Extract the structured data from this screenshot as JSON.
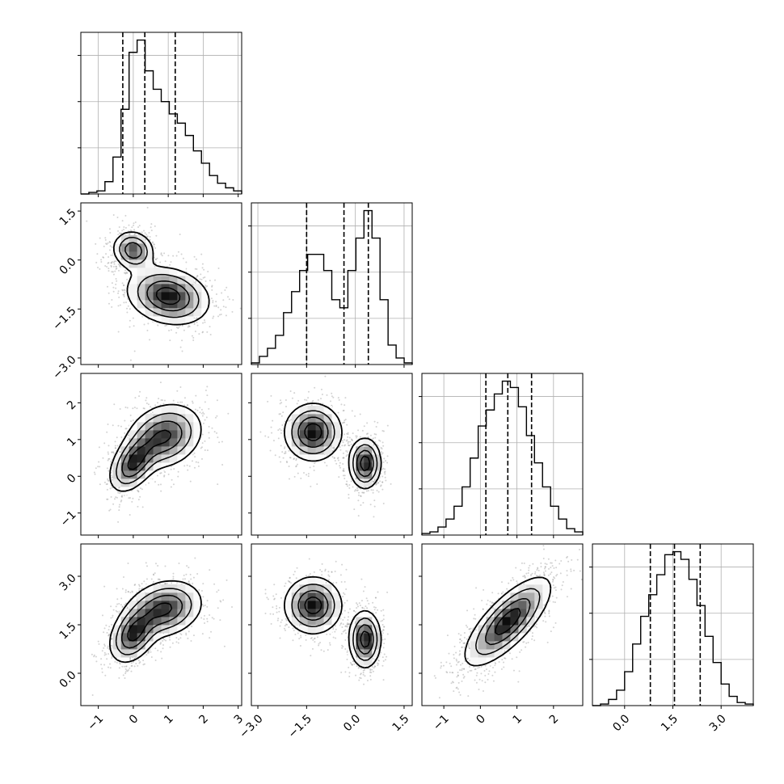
{
  "chart_data": {
    "type": "corner",
    "variables": [
      {
        "range": [
          -1.5,
          3.1
        ],
        "ticks": [
          -1,
          0,
          1,
          2,
          3
        ],
        "tick_labels": [
          "−1",
          "0",
          "1",
          "2",
          "3"
        ],
        "quantiles": [
          -0.3,
          0.33,
          1.2
        ],
        "histogram": {
          "edges_start": -1.5,
          "bin_width": 0.23,
          "counts": [
            0,
            1,
            2,
            8,
            24,
            55,
            92,
            100,
            80,
            68,
            60,
            52,
            46,
            38,
            28,
            20,
            12,
            7,
            4,
            2
          ]
        }
      },
      {
        "range": [
          -3.2,
          1.75
        ],
        "ticks": [
          -3.0,
          -1.5,
          0.0,
          1.5
        ],
        "tick_labels": [
          "−3.0",
          "−1.5",
          "0.0",
          "1.5"
        ],
        "quantiles": [
          -1.5,
          -0.35,
          0.4
        ],
        "histogram": {
          "edges_start": -3.2,
          "bin_width": 0.2475,
          "counts": [
            1,
            5,
            10,
            18,
            32,
            45,
            58,
            68,
            68,
            58,
            40,
            35,
            58,
            78,
            95,
            78,
            40,
            12,
            4,
            1
          ]
        }
      },
      {
        "range": [
          -1.6,
          2.8
        ],
        "ticks": [
          -1,
          0,
          1,
          2
        ],
        "tick_labels": [
          "−1",
          "0",
          "1",
          "2"
        ],
        "quantiles": [
          0.15,
          0.75,
          1.4
        ],
        "histogram": {
          "edges_start": -1.6,
          "bin_width": 0.22,
          "counts": [
            1,
            2,
            5,
            10,
            18,
            30,
            48,
            68,
            78,
            88,
            96,
            92,
            80,
            62,
            45,
            30,
            18,
            10,
            4,
            2
          ]
        }
      },
      {
        "range": [
          -1.0,
          4.0
        ],
        "ticks": [
          0.0,
          1.5,
          3.0
        ],
        "tick_labels": [
          "0.0",
          "1.5",
          "3.0"
        ],
        "quantiles": [
          0.8,
          1.55,
          2.35
        ],
        "histogram": {
          "edges_start": -1.0,
          "bin_width": 0.25,
          "counts": [
            0,
            1,
            4,
            10,
            22,
            40,
            58,
            72,
            85,
            98,
            100,
            95,
            82,
            65,
            45,
            28,
            14,
            6,
            2,
            1
          ]
        }
      }
    ],
    "pairs": [
      {
        "row": 1,
        "col": 0,
        "modes": [
          {
            "x": 0.0,
            "y": 0.3,
            "sx": 0.3,
            "sy": 0.3,
            "rho": -0.1,
            "w": 0.45
          },
          {
            "x": 1.0,
            "y": -1.1,
            "sx": 0.6,
            "sy": 0.45,
            "rho": -0.2,
            "w": 0.55
          }
        ]
      },
      {
        "row": 2,
        "col": 0,
        "modes": [
          {
            "x": 0.0,
            "y": 0.35,
            "sx": 0.35,
            "sy": 0.4,
            "rho": 0.45,
            "w": 0.5
          },
          {
            "x": 0.9,
            "y": 1.1,
            "sx": 0.55,
            "sy": 0.45,
            "rho": 0.2,
            "w": 0.5
          }
        ]
      },
      {
        "row": 2,
        "col": 1,
        "modes": [
          {
            "x": -1.3,
            "y": 1.2,
            "sx": 0.45,
            "sy": 0.4,
            "rho": 0.0,
            "w": 0.5
          },
          {
            "x": 0.3,
            "y": 0.35,
            "sx": 0.25,
            "sy": 0.35,
            "rho": 0.0,
            "w": 0.5
          }
        ]
      },
      {
        "row": 3,
        "col": 0,
        "modes": [
          {
            "x": 0.0,
            "y": 1.2,
            "sx": 0.35,
            "sy": 0.45,
            "rho": 0.35,
            "w": 0.5
          },
          {
            "x": 0.9,
            "y": 2.0,
            "sx": 0.55,
            "sy": 0.45,
            "rho": 0.2,
            "w": 0.5
          }
        ]
      },
      {
        "row": 3,
        "col": 1,
        "modes": [
          {
            "x": -1.3,
            "y": 2.1,
            "sx": 0.45,
            "sy": 0.45,
            "rho": 0.0,
            "w": 0.5
          },
          {
            "x": 0.3,
            "y": 1.05,
            "sx": 0.25,
            "sy": 0.45,
            "rho": 0.0,
            "w": 0.5
          }
        ]
      },
      {
        "row": 3,
        "col": 2,
        "modes": [
          {
            "x": 0.75,
            "y": 1.6,
            "sx": 0.6,
            "sy": 0.7,
            "rho": 0.75,
            "w": 1.0
          }
        ]
      }
    ],
    "contour_levels": [
      0.15,
      0.35,
      0.6,
      0.85
    ],
    "grid": true,
    "colors": {
      "line": "#000000",
      "scatter": "#808080",
      "grid": "#b0b0b0",
      "density_max": "#000000",
      "density_min": "#ffffff"
    }
  }
}
